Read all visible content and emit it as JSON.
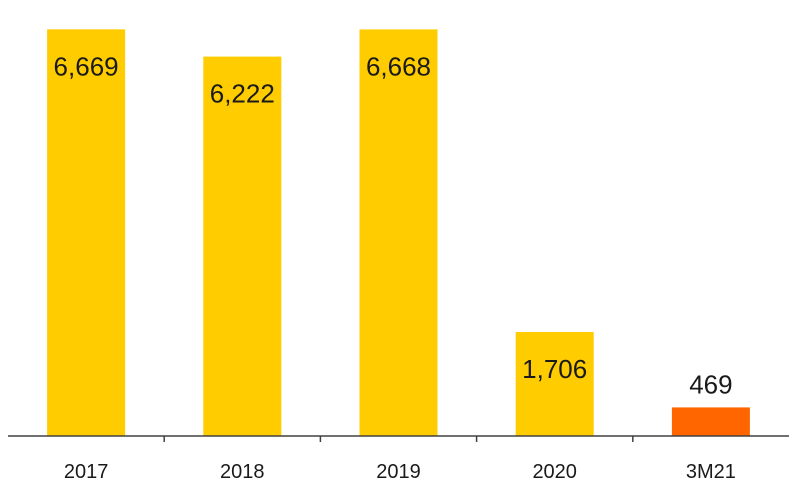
{
  "chart_data": {
    "type": "bar",
    "categories": [
      "2017",
      "2018",
      "2019",
      "2020",
      "3M21"
    ],
    "values": [
      6669,
      6222,
      6668,
      1706,
      469
    ],
    "data_labels": [
      "6,669",
      "6,222",
      "6,668",
      "1,706",
      "469"
    ],
    "title": "",
    "xlabel": "",
    "ylabel": "",
    "ylim": [
      0,
      7150
    ],
    "grid": false,
    "legend": "none",
    "colors": {
      "default_bar": "#FFCC00",
      "highlight_bar": "#FF6600",
      "axis": "#404040",
      "text": "#1a1a1a"
    },
    "highlight_index": 4
  }
}
